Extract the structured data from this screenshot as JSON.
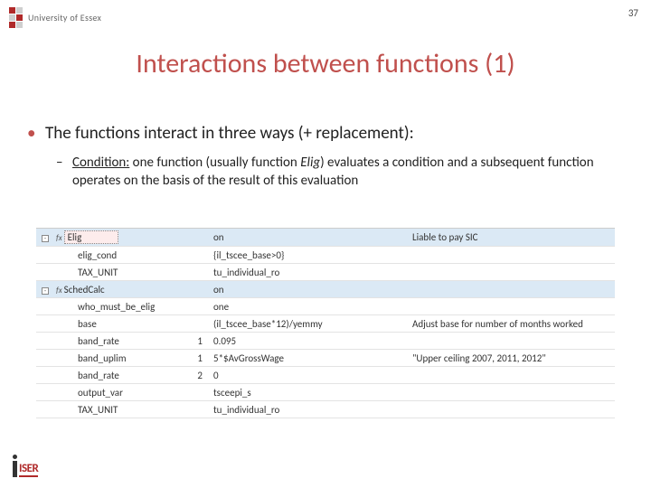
{
  "page_number": "37",
  "logo_colors": {
    "red": "#b02a2a",
    "grey": "#cfcfcf"
  },
  "uni_name": "University of Essex",
  "title": "Interactions between functions (1)",
  "title_color": "#c0504d",
  "bullet_text": "The functions interact in three ways (+ replacement):",
  "sub_label": "Condition:",
  "sub_text_a": " one function (usually function ",
  "sub_text_b": "Elig",
  "sub_text_c": ") evaluates a condition and a subsequent function operates on the basis of the result of this evaluation",
  "table": {
    "row_bg_hl": "#dbe9f5",
    "border": "#e3e3e3",
    "selected_bg": "#fdecec",
    "rows": [
      {
        "hl": true,
        "tree": "-",
        "fx": true,
        "name": "Elig",
        "selected": true,
        "num": "",
        "val": "on",
        "desc": "Liable to pay SIC"
      },
      {
        "hl": false,
        "tree": "",
        "fx": false,
        "name": "elig_cond",
        "indent": true,
        "num": "",
        "val": "{il_tscee_base>0}",
        "desc": ""
      },
      {
        "hl": false,
        "tree": "",
        "fx": false,
        "name": "TAX_UNIT",
        "indent": true,
        "num": "",
        "val": "tu_individual_ro",
        "desc": ""
      },
      {
        "hl": true,
        "tree": "-",
        "fx": true,
        "name": "SchedCalc",
        "num": "",
        "val": "on",
        "desc": ""
      },
      {
        "hl": false,
        "tree": "",
        "fx": false,
        "name": "who_must_be_elig",
        "indent": true,
        "num": "",
        "val": "one",
        "desc": ""
      },
      {
        "hl": false,
        "tree": "",
        "fx": false,
        "name": "base",
        "indent": true,
        "num": "",
        "val": "(il_tscee_base*12)/yemmy",
        "desc": "Adjust base for number of months worked"
      },
      {
        "hl": false,
        "tree": "",
        "fx": false,
        "name": "band_rate",
        "indent": true,
        "num": "1",
        "val": "0.095",
        "desc": ""
      },
      {
        "hl": false,
        "tree": "",
        "fx": false,
        "name": "band_uplim",
        "indent": true,
        "num": "1",
        "val": "5*$AvGrossWage",
        "desc": "\"Upper ceiling 2007, 2011, 2012\""
      },
      {
        "hl": false,
        "tree": "",
        "fx": false,
        "name": "band_rate",
        "indent": true,
        "num": "2",
        "val": "0",
        "desc": ""
      },
      {
        "hl": false,
        "tree": "",
        "fx": false,
        "name": "output_var",
        "indent": true,
        "num": "",
        "val": "tsceepi_s",
        "desc": ""
      },
      {
        "hl": false,
        "tree": "",
        "fx": false,
        "name": "TAX_UNIT",
        "indent": true,
        "num": "",
        "val": "tu_individual_ro",
        "desc": ""
      }
    ]
  },
  "footer": {
    "iser": "ISER",
    "iser_color": "#b02a2a"
  }
}
